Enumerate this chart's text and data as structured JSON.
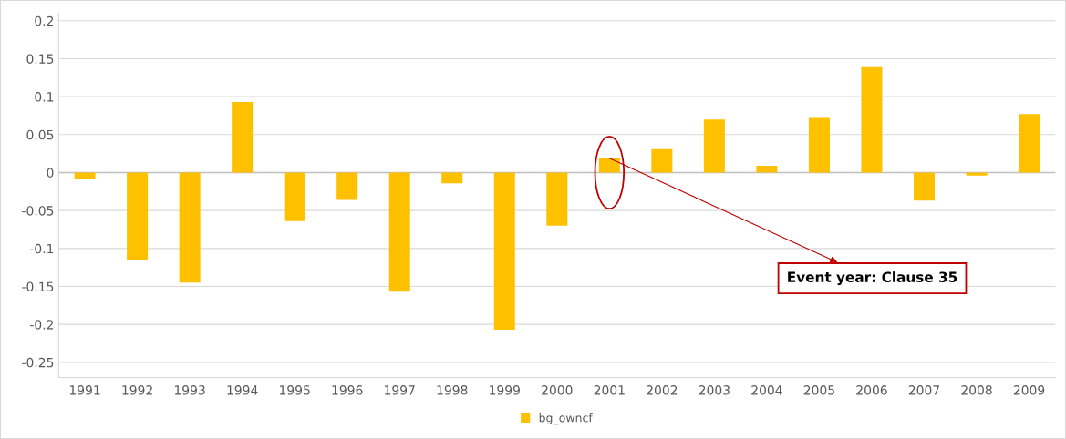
{
  "chart_data": {
    "type": "bar",
    "categories": [
      "1991",
      "1992",
      "1993",
      "1994",
      "1995",
      "1996",
      "1997",
      "1998",
      "1999",
      "2000",
      "2001",
      "2002",
      "2003",
      "2004",
      "2005",
      "2006",
      "2007",
      "2008",
      "2009"
    ],
    "series": [
      {
        "name": "bg_owncf",
        "color": "#ffc000",
        "values": [
          -0.008,
          -0.115,
          -0.145,
          0.093,
          -0.064,
          -0.036,
          -0.157,
          -0.014,
          -0.207,
          -0.07,
          0.019,
          0.031,
          0.07,
          0.009,
          0.072,
          0.139,
          -0.037,
          -0.004,
          0.077
        ]
      }
    ],
    "ylim": [
      -0.27,
      0.21
    ],
    "yticks": [
      -0.25,
      -0.2,
      -0.15,
      -0.1,
      -0.05,
      0,
      0.05,
      0.1,
      0.15,
      0.2
    ],
    "grid": "y",
    "legend": "bottom",
    "annotations": [
      {
        "text": "Event year: Clause 35",
        "x": "2001",
        "y": 0.019
      }
    ]
  }
}
